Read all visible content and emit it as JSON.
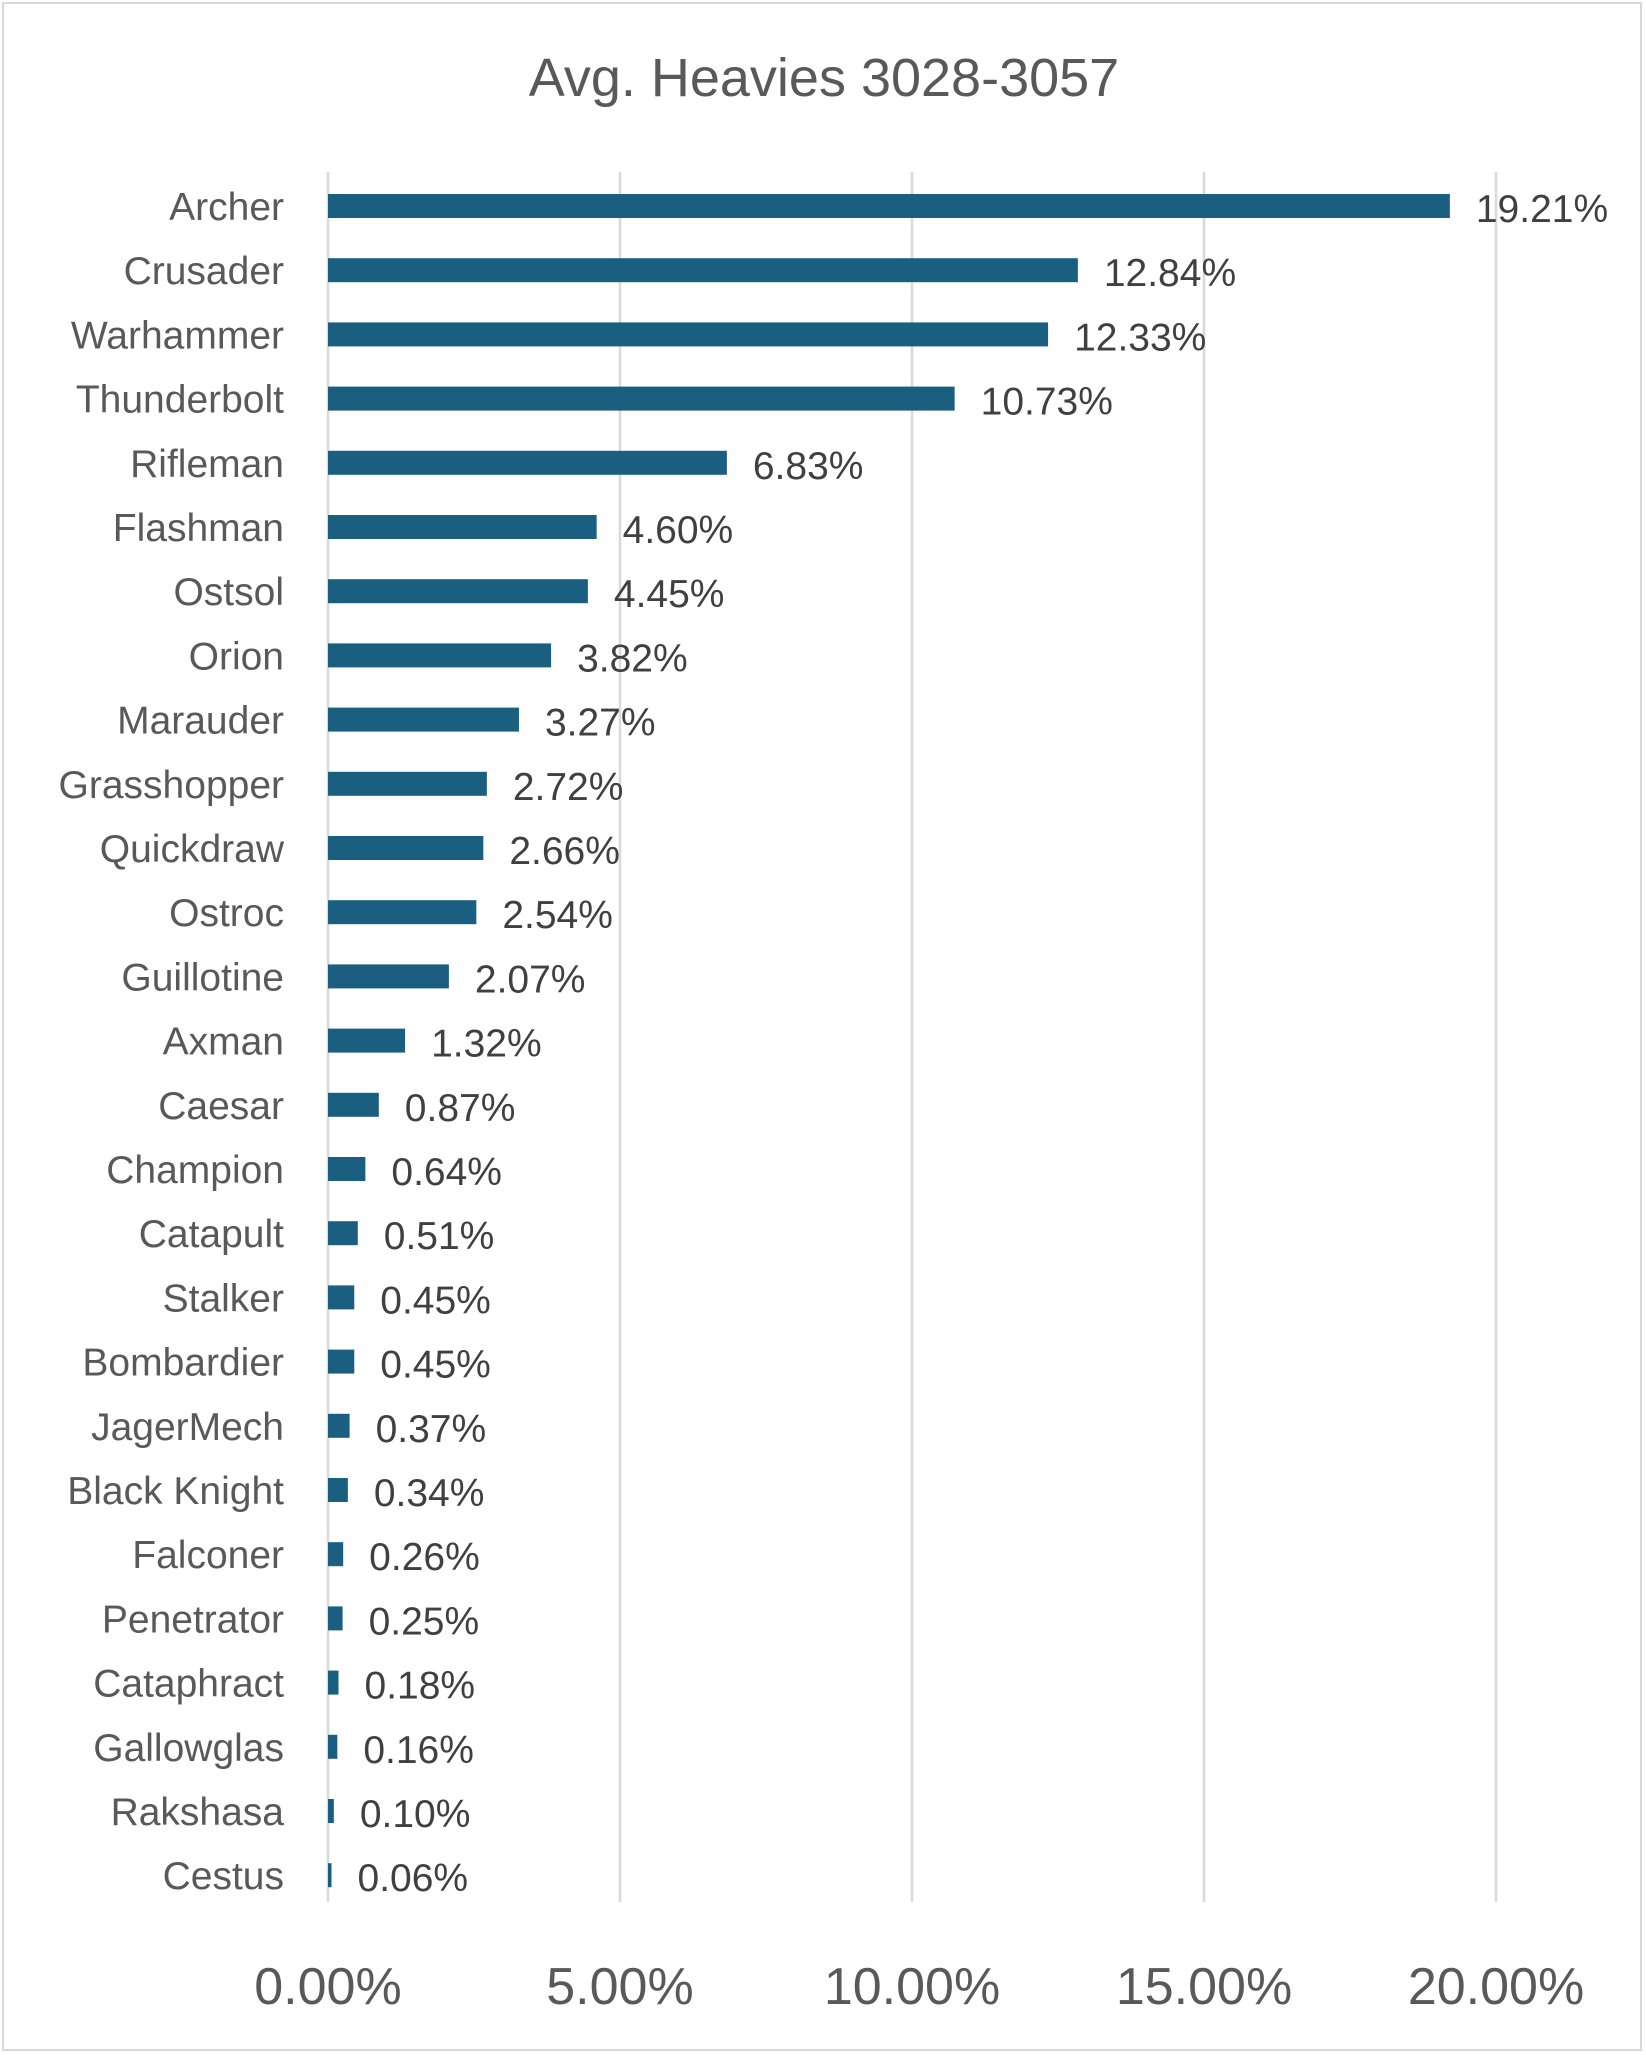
{
  "chart_data": {
    "type": "bar",
    "orientation": "horizontal",
    "title": "Avg. Heavies 3028-3057",
    "xlabel": "",
    "ylabel": "",
    "xlim": [
      0,
      20
    ],
    "grid": true,
    "legend": "none",
    "bar_color": "#1b5f80",
    "categories": [
      "Archer",
      "Crusader",
      "Warhammer",
      "Thunderbolt",
      "Rifleman",
      "Flashman",
      "Ostsol",
      "Orion",
      "Marauder",
      "Grasshopper",
      "Quickdraw",
      "Ostroc",
      "Guillotine",
      "Axman",
      "Caesar",
      "Champion",
      "Catapult",
      "Stalker",
      "Bombardier",
      "JagerMech",
      "Black Knight",
      "Falconer",
      "Penetrator",
      "Cataphract",
      "Gallowglas",
      "Rakshasa",
      "Cestus"
    ],
    "values": [
      19.21,
      12.84,
      12.33,
      10.73,
      6.83,
      4.6,
      4.45,
      3.82,
      3.27,
      2.72,
      2.66,
      2.54,
      2.07,
      1.32,
      0.87,
      0.64,
      0.51,
      0.45,
      0.45,
      0.37,
      0.34,
      0.26,
      0.25,
      0.18,
      0.16,
      0.1,
      0.06
    ],
    "data_labels": [
      "19.21%",
      "12.84%",
      "12.33%",
      "10.73%",
      "6.83%",
      "4.60%",
      "4.45%",
      "3.82%",
      "3.27%",
      "2.72%",
      "2.66%",
      "2.54%",
      "2.07%",
      "1.32%",
      "0.87%",
      "0.64%",
      "0.51%",
      "0.45%",
      "0.45%",
      "0.37%",
      "0.34%",
      "0.26%",
      "0.25%",
      "0.18%",
      "0.16%",
      "0.10%",
      "0.06%"
    ],
    "x_ticks": [
      0,
      5,
      10,
      15,
      20
    ],
    "x_tick_labels": [
      "0.00%",
      "5.00%",
      "10.00%",
      "15.00%",
      "20.00%"
    ]
  }
}
